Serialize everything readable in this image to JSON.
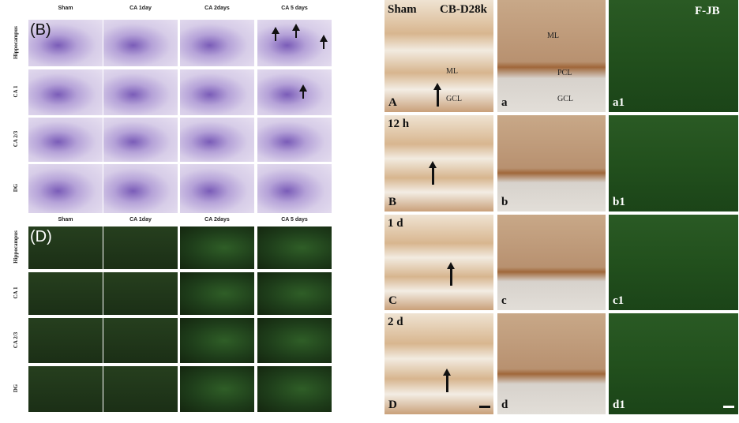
{
  "panel_b": {
    "label": "(B)",
    "columns": [
      "Sham",
      "CA 1day",
      "CA 2days",
      "CA 5 days"
    ],
    "rows": [
      "Hippocampus",
      "CA 1",
      "CA 2/3",
      "DG"
    ]
  },
  "panel_d": {
    "label": "(D)",
    "columns": [
      "Sham",
      "CA 1day",
      "CA 2days",
      "CA 5 days"
    ],
    "rows": [
      "Hippocampus",
      "CA 1",
      "CA 2/3",
      "DG"
    ]
  },
  "right_panel": {
    "title": "Sham",
    "stain": "CB-D28k",
    "stain2": "F-JB",
    "rows": [
      {
        "labels": [
          "A",
          "a",
          "a1"
        ],
        "notes": [
          [
            "ML",
            "GCL"
          ],
          [
            "ML",
            "PCL",
            "GCL"
          ]
        ]
      },
      {
        "time": "12 h",
        "labels": [
          "B",
          "b",
          "b1"
        ]
      },
      {
        "time": "1 d",
        "labels": [
          "C",
          "c",
          "c1"
        ]
      },
      {
        "time": "2 d",
        "labels": [
          "D",
          "d",
          "d1"
        ]
      }
    ]
  }
}
